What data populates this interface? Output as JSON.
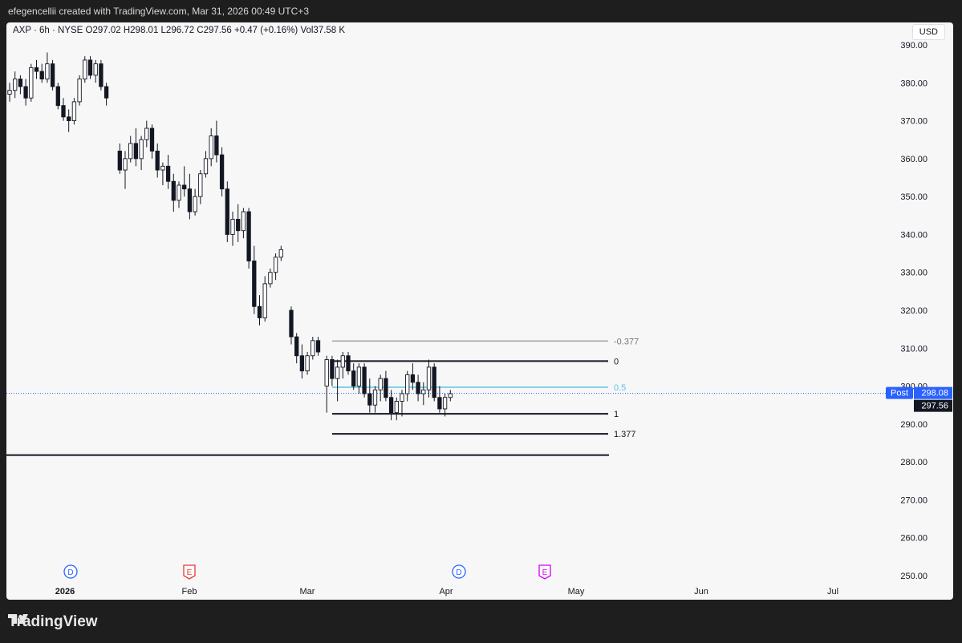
{
  "header": {
    "caption": "efegencellii created with TradingView.com, Mar 31, 2026 00:49 UTC+3"
  },
  "legend": {
    "text": "AXP · 6h · NYSE  O297.02  H298.01  L296.72  C297.56  +0.47 (+0.16%)  Vol37.58 K"
  },
  "currency": "USD",
  "footer": {
    "brand": "TradingView"
  },
  "colors": {
    "fib_neutral": "#555555",
    "fib_half": "#5cc6e0",
    "candle": "#131722",
    "price_badge": "#2962ff"
  },
  "chart_data": {
    "type": "candlestick",
    "symbol": "AXP",
    "interval": "6h",
    "exchange": "NYSE",
    "ylim": [
      250,
      390
    ],
    "y_ticks": [
      "390.00",
      "380.00",
      "370.00",
      "360.00",
      "350.00",
      "340.00",
      "330.00",
      "320.00",
      "310.00",
      "300.00",
      "290.00",
      "280.00",
      "270.00",
      "260.00",
      "250.00"
    ],
    "x_ticks": [
      "2026",
      "Feb",
      "Mar",
      "Apr",
      "May",
      "Jun",
      "Jul"
    ],
    "current_price": {
      "label": "Post",
      "value": "298.08",
      "last": "297.56"
    },
    "fib_levels": [
      {
        "label": "-0.377",
        "price": 311.9
      },
      {
        "label": "0",
        "price": 306.6
      },
      {
        "label": "0.5",
        "price": 299.7
      },
      {
        "label": "1",
        "price": 292.7
      },
      {
        "label": "1.377",
        "price": 287.4
      }
    ],
    "support_line": 281.8,
    "events": [
      {
        "type": "D",
        "x": 80,
        "color": "#2962ff"
      },
      {
        "type": "E",
        "x": 228,
        "color": "#e53935"
      },
      {
        "type": "D",
        "x": 564,
        "color": "#2962ff"
      },
      {
        "type": "E",
        "x": 671,
        "color": "#d500f9"
      }
    ],
    "candles": [
      [
        377,
        380,
        375,
        378
      ],
      [
        378,
        383,
        376,
        381
      ],
      [
        381,
        382,
        377,
        379
      ],
      [
        379,
        381,
        374,
        376
      ],
      [
        376,
        385,
        375,
        384
      ],
      [
        384,
        386,
        381,
        383
      ],
      [
        383,
        385,
        380,
        381
      ],
      [
        381,
        388,
        380,
        385
      ],
      [
        385,
        386,
        378,
        379
      ],
      [
        379,
        380,
        373,
        374
      ],
      [
        374,
        376,
        370,
        371
      ],
      [
        371,
        373,
        367,
        370
      ],
      [
        370,
        376,
        369,
        375
      ],
      [
        375,
        382,
        374,
        381
      ],
      [
        381,
        387,
        380,
        386
      ],
      [
        386,
        387,
        381,
        382
      ],
      [
        382,
        386,
        380,
        385
      ],
      [
        385,
        386,
        378,
        379
      ],
      [
        379,
        380,
        374,
        376
      ],
      [
        362,
        364,
        356,
        357
      ],
      [
        357,
        362,
        352,
        360
      ],
      [
        360,
        366,
        359,
        364
      ],
      [
        364,
        368,
        358,
        360
      ],
      [
        360,
        366,
        357,
        365
      ],
      [
        365,
        370,
        363,
        368
      ],
      [
        368,
        369,
        360,
        362
      ],
      [
        362,
        364,
        355,
        357
      ],
      [
        357,
        359,
        353,
        358
      ],
      [
        358,
        361,
        352,
        354
      ],
      [
        354,
        356,
        346,
        349
      ],
      [
        349,
        354,
        347,
        353
      ],
      [
        353,
        358,
        350,
        352
      ],
      [
        352,
        356,
        344,
        346
      ],
      [
        346,
        352,
        345,
        350
      ],
      [
        350,
        357,
        348,
        356
      ],
      [
        356,
        362,
        355,
        360
      ],
      [
        360,
        368,
        358,
        366
      ],
      [
        366,
        370,
        359,
        361
      ],
      [
        361,
        363,
        350,
        352
      ],
      [
        352,
        354,
        338,
        340
      ],
      [
        340,
        346,
        337,
        344
      ],
      [
        344,
        348,
        338,
        341
      ],
      [
        341,
        347,
        339,
        346
      ],
      [
        346,
        347,
        331,
        333
      ],
      [
        333,
        337,
        319,
        321
      ],
      [
        321,
        324,
        316,
        318
      ],
      [
        318,
        329,
        317,
        327
      ],
      [
        327,
        331,
        326,
        330
      ],
      [
        330,
        335,
        328,
        334
      ],
      [
        334,
        337,
        333,
        336
      ],
      [
        320,
        321,
        311,
        313
      ],
      [
        313,
        314,
        306,
        308
      ],
      [
        308,
        311,
        302,
        304
      ],
      [
        304,
        309,
        303,
        308
      ],
      [
        308,
        313,
        307,
        312
      ],
      [
        312,
        313,
        308,
        309
      ],
      [
        300,
        308,
        293,
        307
      ],
      [
        307,
        308,
        300,
        302
      ],
      [
        302,
        307,
        296,
        305
      ],
      [
        305,
        309,
        302,
        308
      ],
      [
        308,
        309,
        303,
        304
      ],
      [
        304,
        306,
        299,
        300
      ],
      [
        300,
        306,
        298,
        305
      ],
      [
        305,
        306,
        297,
        298
      ],
      [
        298,
        302,
        293,
        295
      ],
      [
        295,
        300,
        293,
        299
      ],
      [
        299,
        303,
        296,
        302
      ],
      [
        302,
        304,
        296,
        297
      ],
      [
        297,
        299,
        291,
        293
      ],
      [
        293,
        297,
        291,
        296
      ],
      [
        296,
        299,
        292,
        298
      ],
      [
        298,
        304,
        296,
        303
      ],
      [
        303,
        306,
        299,
        301
      ],
      [
        301,
        303,
        296,
        298
      ],
      [
        298,
        301,
        295,
        299
      ],
      [
        299,
        307,
        297,
        305
      ],
      [
        305,
        306,
        296,
        297
      ],
      [
        297,
        300,
        293,
        294
      ],
      [
        294,
        298,
        292,
        297
      ],
      [
        297,
        299,
        296,
        298
      ]
    ]
  }
}
